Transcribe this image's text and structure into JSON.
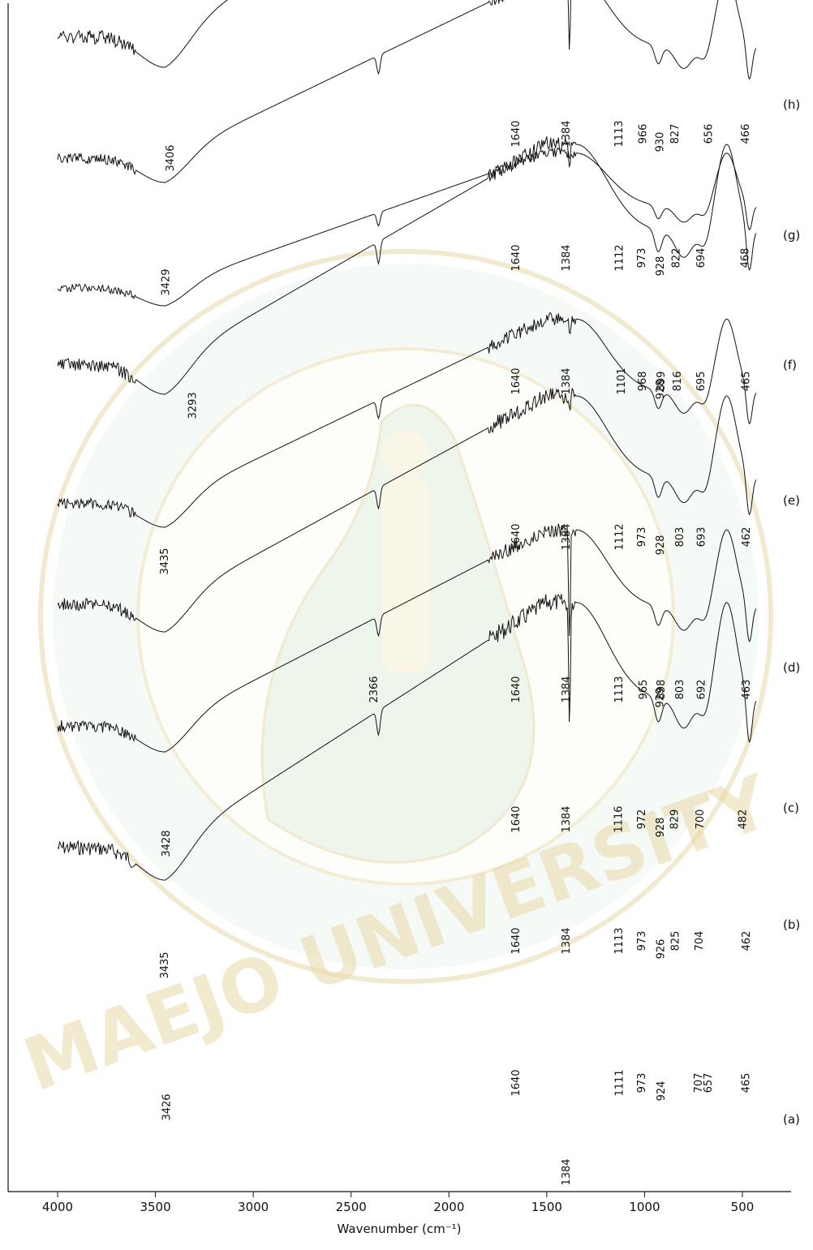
{
  "chart_data": {
    "type": "line",
    "xlabel": "Wavenumber (cm⁻¹)",
    "xlim": [
      4100,
      300
    ],
    "x_ticks": [
      4000,
      3500,
      3000,
      2500,
      2000,
      1500,
      1000,
      500
    ],
    "x_tick_labels": [
      "4000",
      "3500",
      "3000",
      "2500",
      "2000",
      "1500",
      "1000",
      "500"
    ],
    "series": [
      {
        "name": "(a)",
        "peaks": [
          "3426",
          "1640",
          "1384",
          "1111",
          "973",
          "924",
          "707",
          "657",
          "465"
        ]
      },
      {
        "name": "(b)",
        "peaks": [
          "3435",
          "1640",
          "1384",
          "1113",
          "973",
          "926",
          "825",
          "704",
          "462"
        ]
      },
      {
        "name": "(c)",
        "peaks": [
          "3428",
          "1640",
          "1384",
          "1116",
          "972",
          "928",
          "829",
          "700",
          "482"
        ]
      },
      {
        "name": "(d)",
        "peaks": [
          "2366",
          "1640",
          "1384",
          "1113",
          "965",
          "929",
          "898",
          "803",
          "692",
          "463"
        ]
      },
      {
        "name": "(e)",
        "peaks": [
          "3435",
          "1640",
          "1384",
          "1112",
          "973",
          "928",
          "803",
          "693",
          "462"
        ]
      },
      {
        "name": "(f)",
        "peaks": [
          "3293",
          "1640",
          "1384",
          "1101",
          "968",
          "928",
          "899",
          "816",
          "695",
          "465"
        ]
      },
      {
        "name": "(g)",
        "peaks": [
          "3429",
          "1640",
          "1384",
          "1112",
          "973",
          "928",
          "822",
          "694",
          "468"
        ]
      },
      {
        "name": "(h)",
        "peaks": [
          "3406",
          "1640",
          "1384",
          "1113",
          "966",
          "930",
          "827",
          "656",
          "466"
        ]
      }
    ]
  },
  "watermark": {
    "text": "MAEJO UNIVERSITY",
    "color": "#e3cf8f"
  }
}
